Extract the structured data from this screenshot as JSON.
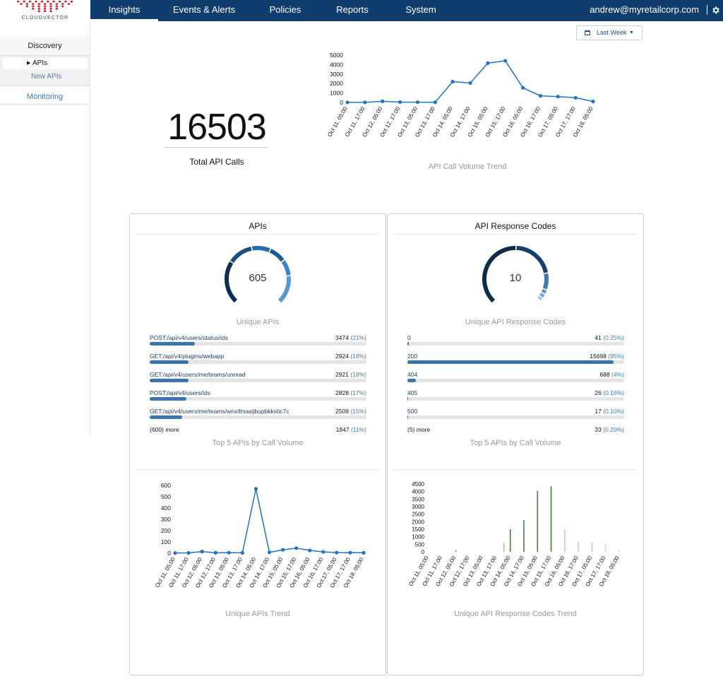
{
  "brand": {
    "name": "CLOUDVECTOR",
    "logo_color": "#c0272d"
  },
  "nav": {
    "tabs": [
      {
        "label": "Insights",
        "active": true
      },
      {
        "label": "Events & Alerts"
      },
      {
        "label": "Policies"
      },
      {
        "label": "Reports"
      },
      {
        "label": "System"
      }
    ],
    "user": "andrew@myretailcorp.com",
    "settings_icon": "gear-icon",
    "bg_color": "#0f3e6e"
  },
  "sidebar": {
    "discovery": "Discovery",
    "apis": "APIs",
    "new_apis": "New APIs",
    "monitoring": "Monitoring"
  },
  "date_filter": {
    "label": "Last Week",
    "icon": "calendar-icon"
  },
  "total": {
    "value": "16503",
    "label": "Total API Calls"
  },
  "trend_labels": [
    "Oct 11, 05:00",
    "Oct 11, 17:00",
    "Oct 12, 05:00",
    "Oct 12, 17:00",
    "Oct 13, 05:00",
    "Oct 13, 17:00",
    "Oct 14, 05:00",
    "Oct 14, 17:00",
    "Oct 15, 05:00",
    "Oct 15, 17:00",
    "Oct 16, 05:00",
    "Oct 16, 17:00",
    "Oct 17, 05:00",
    "Oct 17, 17:00",
    "Oct 18, 05:00"
  ],
  "volume_trend": {
    "caption": "API Call Volume Trend",
    "yticks": [
      "0",
      "1000",
      "2000",
      "3000",
      "4000",
      "5000"
    ],
    "ymax": 5000,
    "values": [
      5,
      10,
      120,
      40,
      30,
      20,
      2200,
      2050,
      4150,
      4400,
      1550,
      700,
      620,
      500,
      100
    ]
  },
  "apis_panel": {
    "title": "APIs",
    "gauge_value": "605",
    "gauge_caption": "Unique APIs",
    "rows": [
      {
        "label": "POST:/api/v4/users/status/ids",
        "count": "3474",
        "pct": "(21%)",
        "frac": 0.21
      },
      {
        "label": "GET:/api/v4/plugins/webapp",
        "count": "2924",
        "pct": "(18%)",
        "frac": 0.18
      },
      {
        "label": "GET:/api/v4/users/me/teams/unread",
        "count": "2921",
        "pct": "(18%)",
        "frac": 0.18
      },
      {
        "label": "POST:/api/v4/users/ids",
        "count": "2828",
        "pct": "(17%)",
        "frac": 0.17
      },
      {
        "label": "GET:/api/v4/users/me/teams/wnxifmasijbupbkkstic7c",
        "count": "2509",
        "pct": "(15%)",
        "frac": 0.15
      }
    ],
    "more_label": "(600) more",
    "more_count": "1847",
    "more_pct": "(11%)",
    "rows_caption": "Top 5 APIs by Call Volume",
    "trend_caption": "Unique APIs Trend",
    "trend_yticks": [
      "0",
      "100",
      "200",
      "300",
      "400",
      "500",
      "600"
    ],
    "trend_ymax": 600,
    "trend_values": [
      2,
      3,
      15,
      4,
      5,
      4,
      570,
      8,
      30,
      45,
      25,
      12,
      6,
      5,
      4
    ]
  },
  "codes_panel": {
    "title": "API Response Codes",
    "gauge_value": "10",
    "gauge_caption": "Unique API Response Codes",
    "rows": [
      {
        "label": "0",
        "count": "41",
        "pct": "(0.25%)",
        "frac": 0.0025
      },
      {
        "label": "200",
        "count": "15698",
        "pct": "(95%)",
        "frac": 0.95
      },
      {
        "label": "404",
        "count": "688",
        "pct": "(4%)",
        "frac": 0.04
      },
      {
        "label": "405",
        "count": "26",
        "pct": "(0.16%)",
        "frac": 0.0016
      },
      {
        "label": "500",
        "count": "17",
        "pct": "(0.10%)",
        "frac": 0.001
      }
    ],
    "more_label": "(5) more",
    "more_count": "33",
    "more_pct": "(0.20%)",
    "rows_caption": "Top 5 APIs by Call Volume",
    "trend_caption": "Unique API Response Codes Trend",
    "trend_yticks": [
      "0",
      "500",
      "1000",
      "1500",
      "2000",
      "2500",
      "3000",
      "3500",
      "4000",
      "4500"
    ],
    "trend_ymax": 4500,
    "bar_series": [
      {
        "color": "#4f7a3f",
        "values": [
          0,
          0,
          80,
          0,
          0,
          0,
          1500,
          2100,
          4050,
          4350,
          1500,
          650,
          600,
          480,
          70
        ]
      },
      {
        "color": "#9cc98a",
        "values": [
          0,
          0,
          20,
          0,
          0,
          0,
          580,
          0,
          0,
          0,
          0,
          0,
          0,
          0,
          0
        ]
      }
    ]
  }
}
